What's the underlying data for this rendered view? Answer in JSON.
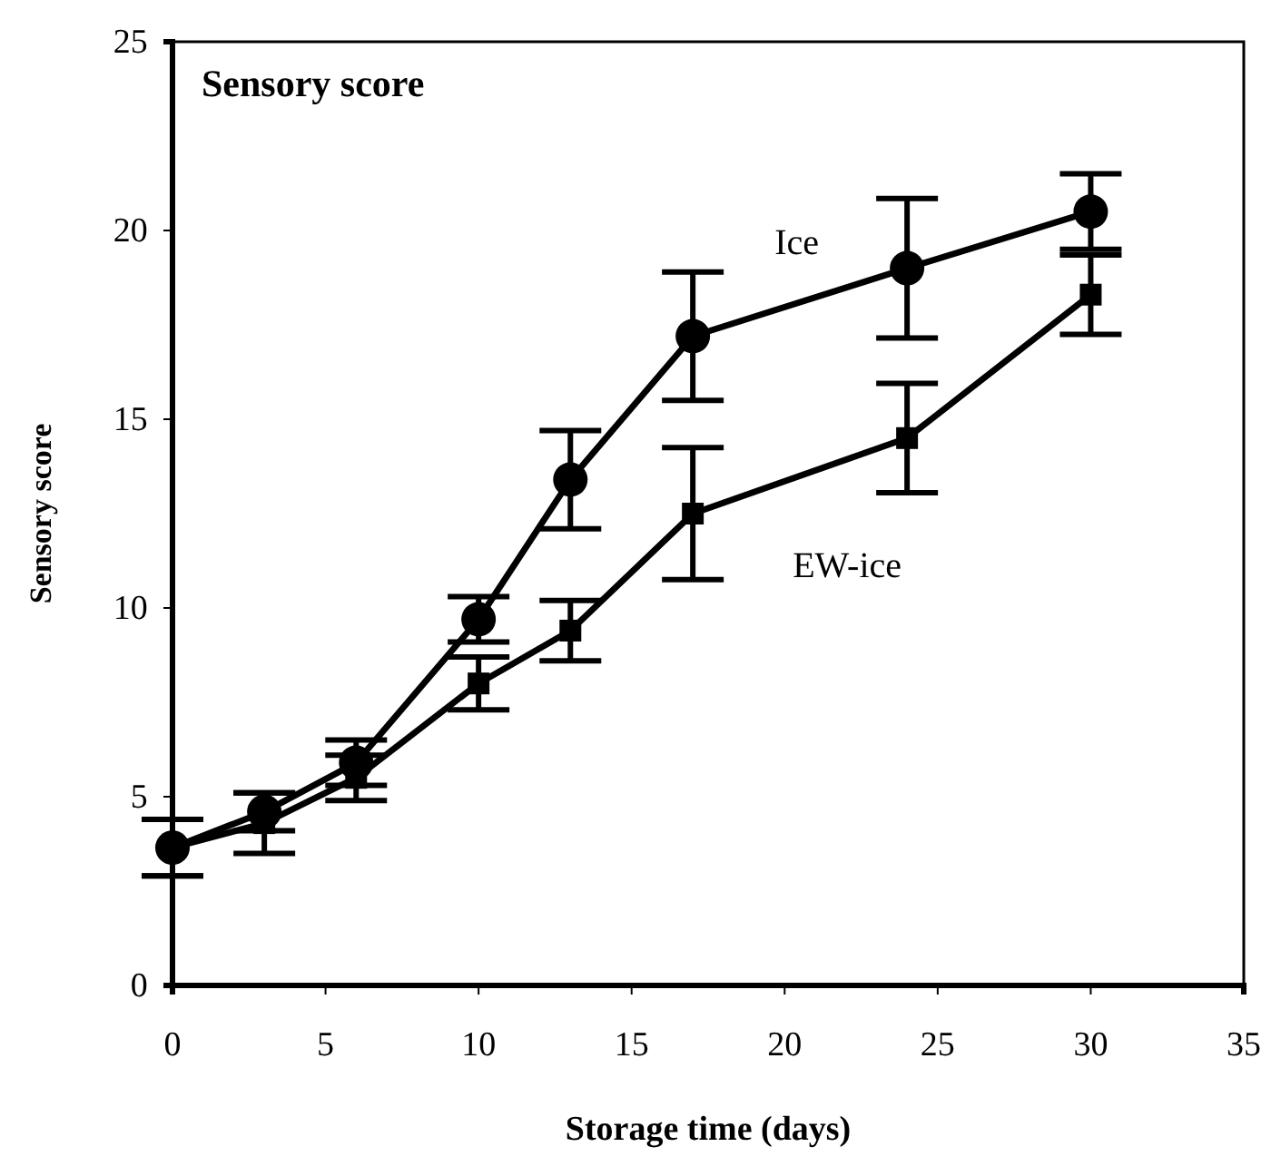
{
  "chart_data": {
    "type": "line",
    "title": "Sensory score",
    "xlabel": "Storage time (days)",
    "ylabel": "Sensory score",
    "xlim": [
      0,
      35
    ],
    "xticks": [
      0,
      5,
      10,
      15,
      20,
      25,
      30,
      35
    ],
    "ylim": [
      0,
      25
    ],
    "yticks": [
      0,
      5,
      10,
      15,
      20,
      25
    ],
    "grid": false,
    "x": [
      0,
      3,
      6,
      10,
      13,
      17,
      24,
      30
    ],
    "series": [
      {
        "name": "Ice",
        "color": "#000000",
        "marker": "circle",
        "values": [
          3.65,
          4.6,
          5.9,
          9.7,
          13.4,
          17.2,
          19.0,
          20.5
        ],
        "errors": [
          0.75,
          0.5,
          0.6,
          0.6,
          1.3,
          1.7,
          1.85,
          1.0
        ]
      },
      {
        "name": "EW-ice",
        "color": "#000000",
        "marker": "square",
        "values": [
          3.65,
          4.3,
          5.5,
          8.0,
          9.4,
          12.5,
          14.5,
          18.3
        ],
        "errors": [
          0.75,
          0.8,
          0.6,
          0.7,
          0.8,
          1.75,
          1.45,
          1.05
        ]
      }
    ]
  }
}
